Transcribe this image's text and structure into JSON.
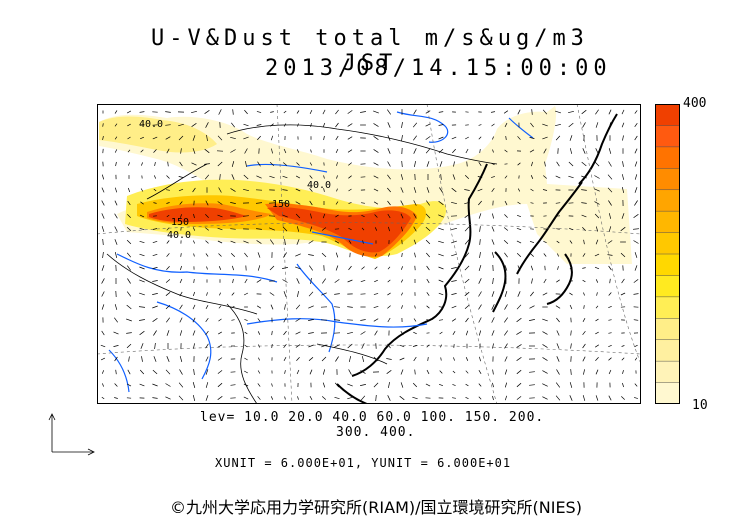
{
  "title": {
    "line1": "U-V&Dust total m/s&ug/m3 JST",
    "line2": "2013/08/14.15:00:00"
  },
  "colorbar": {
    "max_label": "400",
    "min_label": "10",
    "colors": [
      "#fff8d0",
      "#fff3b8",
      "#fff0a0",
      "#ffee88",
      "#ffee55",
      "#ffea20",
      "#ffd800",
      "#ffc800",
      "#ffb700",
      "#ffa500",
      "#ff8c00",
      "#ff7300",
      "#ff5a10",
      "#f04000"
    ]
  },
  "levels": {
    "line1": "lev= 10.0 20.0 40.0 60.0 100. 150. 200.",
    "line2": "300. 400."
  },
  "units": "XUNIT = 6.000E+01, YUNIT = 6.000E+01",
  "contour_labels": [
    "40.0",
    "40.0",
    "150",
    "150",
    "40.0"
  ],
  "copyright": "©九州大学応用力学研究所(RIAM)/国立環境研究所(NIES)"
}
